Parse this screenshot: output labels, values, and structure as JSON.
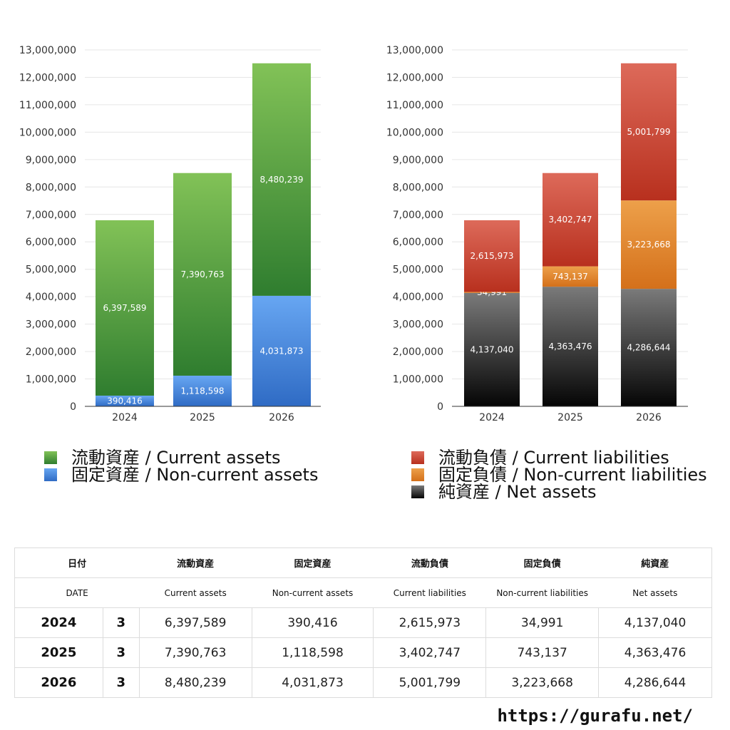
{
  "colors": {
    "current_assets": "#4a9a3c",
    "non_current_assets": "#4a86d8",
    "current_liabilities": "#c8402e",
    "non_current_liabilities": "#e27b22",
    "net_assets": "#2a2a2a",
    "grid": "#e6e6e6",
    "axis": "#333333"
  },
  "chart_data": [
    {
      "type": "bar",
      "stacked": true,
      "categories": [
        "2024",
        "2025",
        "2026"
      ],
      "series": [
        {
          "name": "固定資産 / Non-current assets",
          "values": [
            390416,
            1118598,
            4031873
          ]
        },
        {
          "name": "流動資産 / Current assets",
          "values": [
            6397589,
            7390763,
            8480239
          ]
        }
      ],
      "data_labels": [
        [
          "390,416",
          "1,118,598",
          "4,031,873"
        ],
        [
          "6,397,589",
          "7,390,763",
          "8,480,239"
        ]
      ],
      "ylim": [
        0,
        13000000
      ],
      "yticks": [
        "0",
        "1,000,000",
        "2,000,000",
        "3,000,000",
        "4,000,000",
        "5,000,000",
        "6,000,000",
        "7,000,000",
        "8,000,000",
        "9,000,000",
        "10,000,000",
        "11,000,000",
        "12,000,000",
        "13,000,000"
      ],
      "grid": true,
      "legend_position": "bottom"
    },
    {
      "type": "bar",
      "stacked": true,
      "categories": [
        "2024",
        "2025",
        "2026"
      ],
      "series": [
        {
          "name": "純資産 / Net assets",
          "values": [
            4137040,
            4363476,
            4286644
          ]
        },
        {
          "name": "固定負債 / Non-current liabilities",
          "values": [
            34991,
            743137,
            3223668
          ]
        },
        {
          "name": "流動負債 / Current liabilities",
          "values": [
            2615973,
            3402747,
            5001799
          ]
        }
      ],
      "data_labels": [
        [
          "4,137,040",
          "4,363,476",
          "4,286,644"
        ],
        [
          "34,991",
          "743,137",
          "3,223,668"
        ],
        [
          "2,615,973",
          "3,402,747",
          "5,001,799"
        ]
      ],
      "ylim": [
        0,
        13000000
      ],
      "yticks": [
        "0",
        "1,000,000",
        "2,000,000",
        "3,000,000",
        "4,000,000",
        "5,000,000",
        "6,000,000",
        "7,000,000",
        "8,000,000",
        "9,000,000",
        "10,000,000",
        "11,000,000",
        "12,000,000",
        "13,000,000"
      ],
      "grid": true,
      "legend_position": "bottom"
    }
  ],
  "legend_left": [
    {
      "label": "流動資産 / Current assets",
      "color": "#4a9a3c"
    },
    {
      "label": "固定資産 / Non-current assets",
      "color": "#4a86d8"
    }
  ],
  "legend_right": [
    {
      "label": "流動負債 / Current liabilities",
      "color": "#c8402e"
    },
    {
      "label": "固定負債 / Non-current liabilities",
      "color": "#e27b22"
    },
    {
      "label": "純資産 / Net assets",
      "color": "#2a2a2a"
    }
  ],
  "table": {
    "header_jp": {
      "date": "日付",
      "ca": "流動資産",
      "nca": "固定資産",
      "cl": "流動負債",
      "ncl": "固定負債",
      "na": "純資産"
    },
    "header_en": {
      "date": "DATE",
      "ca": "Current assets",
      "nca": "Non-current assets",
      "cl": "Current liabilities",
      "ncl": "Non-current liabilities",
      "na": "Net assets"
    },
    "rows": [
      {
        "year": "2024",
        "month": "3",
        "ca": "6,397,589",
        "nca": "390,416",
        "cl": "2,615,973",
        "ncl": "34,991",
        "na": "4,137,040"
      },
      {
        "year": "2025",
        "month": "3",
        "ca": "7,390,763",
        "nca": "1,118,598",
        "cl": "3,402,747",
        "ncl": "743,137",
        "na": "4,363,476"
      },
      {
        "year": "2026",
        "month": "3",
        "ca": "8,480,239",
        "nca": "4,031,873",
        "cl": "5,001,799",
        "ncl": "3,223,668",
        "na": "4,286,644"
      }
    ]
  },
  "footer": {
    "url": "https://gurafu.net/"
  }
}
